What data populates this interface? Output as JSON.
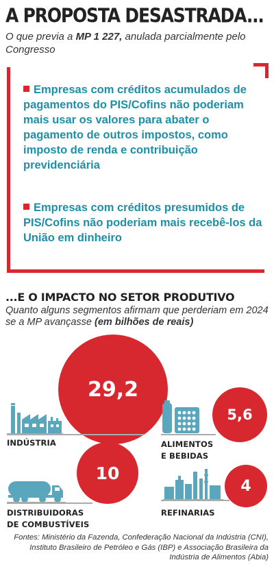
{
  "header": {
    "title": "A PROPOSTA DESASTRADA...",
    "subtitle_prefix": "O que previa a ",
    "subtitle_bold": "MP 1 227,",
    "subtitle_suffix": " anulada parcialmente pelo Congresso"
  },
  "proposals": [
    "Empresas com créditos acumulados de pagamentos do PIS/Cofins não poderiam mais usar os valores para abater o pagamento de outros impostos, como imposto de renda e contribuição previdenciária",
    "Empresas com créditos presumidos de PIS/Cofins não poderiam mais recebê-los da União em dinheiro"
  ],
  "impact": {
    "title": "...E O IMPACTO NO SETOR PRODUTIVO",
    "subtitle": "Quanto alguns segmentos afirmam que perderiam em 2024 se a MP avançasse",
    "subtitle_unit": "(em bilhões de reais)"
  },
  "segments": [
    {
      "label_line1": "Indústria",
      "label_line2": "",
      "value": "29,2",
      "icon": "factory-icon"
    },
    {
      "label_line1": "Alimentos",
      "label_line2": "e bebidas",
      "value": "5,6",
      "icon": "food-package-icon"
    },
    {
      "label_line1": "Distribuidoras",
      "label_line2": "de combustíveis",
      "value": "10",
      "icon": "tanker-truck-icon"
    },
    {
      "label_line1": "Refinarias",
      "label_line2": "",
      "value": "4",
      "icon": "refinery-icon"
    }
  ],
  "sources": "Fontes: Ministério da Fazenda, Confederação Nacional da Indústria (CNI), Instituto Brasileiro de Petróleo e Gás (IBP) e Associação Brasileira da Indústria de Alimentos (Abia)",
  "colors": {
    "accent_red": "#d7282f",
    "text_teal": "#1d8fa6",
    "icon_teal": "#5aa6bd",
    "line_gray": "#aaaaaa"
  }
}
